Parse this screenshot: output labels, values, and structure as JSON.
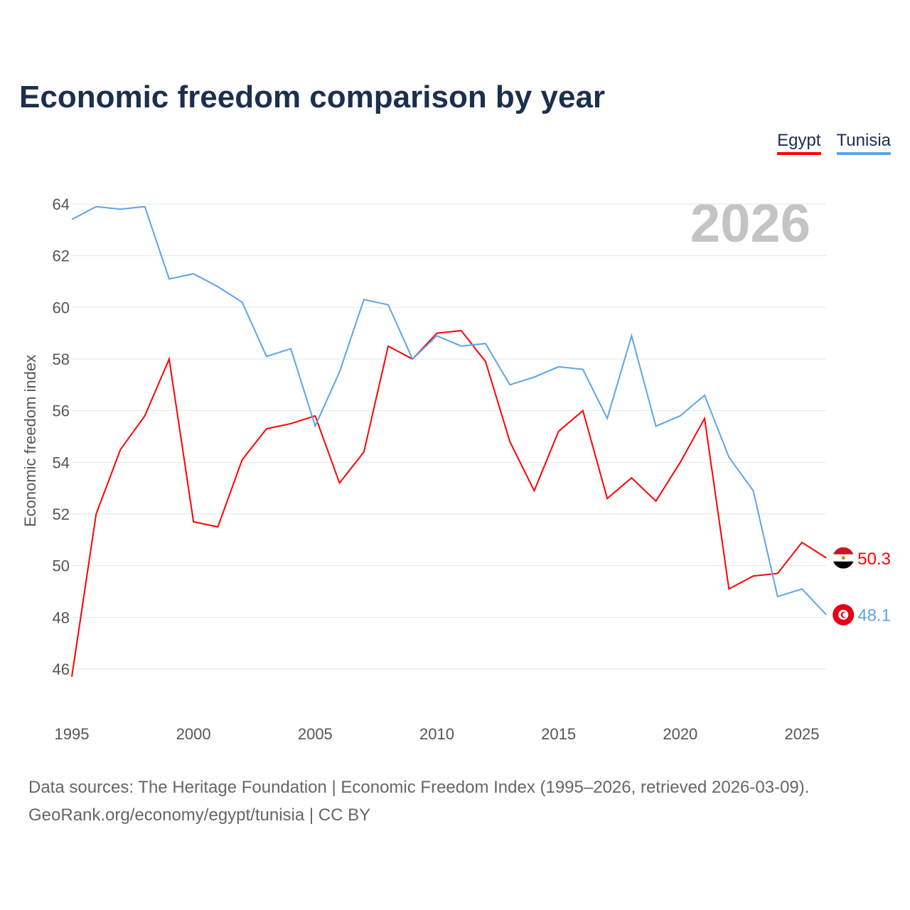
{
  "title": "Economic freedom comparison by year",
  "year_watermark": "2026",
  "source_line1": "Data sources: The Heritage Foundation | Economic Freedom Index (1995–2026, retrieved 2026-03-09).",
  "source_line2": "GeoRank.org/economy/egypt/tunisia | CC BY",
  "chart_data": {
    "type": "line",
    "title": "Economic freedom comparison by year",
    "xlabel": "",
    "ylabel": "Economic freedom index",
    "xlim": [
      1995,
      2026
    ],
    "ylim": [
      45,
      65
    ],
    "xticks": [
      1995,
      2000,
      2005,
      2010,
      2015,
      2020,
      2025
    ],
    "yticks": [
      46,
      48,
      50,
      52,
      54,
      56,
      58,
      60,
      62,
      64
    ],
    "grid": true,
    "legend": "top-right",
    "x": [
      1995,
      1996,
      1997,
      1998,
      1999,
      2000,
      2001,
      2002,
      2003,
      2004,
      2005,
      2006,
      2007,
      2008,
      2009,
      2010,
      2011,
      2012,
      2013,
      2014,
      2015,
      2016,
      2017,
      2018,
      2019,
      2020,
      2021,
      2022,
      2023,
      2024,
      2025,
      2026
    ],
    "series": [
      {
        "name": "Egypt",
        "color": "#ff0000",
        "end_label": "50.3",
        "values": [
          45.7,
          52.0,
          54.5,
          55.8,
          58.0,
          51.7,
          51.5,
          54.1,
          55.3,
          55.5,
          55.8,
          53.2,
          54.4,
          58.5,
          58.0,
          59.0,
          59.1,
          57.9,
          54.8,
          52.9,
          55.2,
          56.0,
          52.6,
          53.4,
          52.5,
          54.0,
          55.7,
          49.1,
          49.6,
          49.7,
          50.9,
          50.3
        ]
      },
      {
        "name": "Tunisia",
        "color": "#5aa5ea",
        "end_label": "48.1",
        "values": [
          63.4,
          63.9,
          63.8,
          63.9,
          61.1,
          61.3,
          60.8,
          60.2,
          58.1,
          58.4,
          55.4,
          57.5,
          60.3,
          60.1,
          58.0,
          58.9,
          58.5,
          58.6,
          57.0,
          57.3,
          57.7,
          57.6,
          55.7,
          58.9,
          55.4,
          55.8,
          56.6,
          54.2,
          52.9,
          48.8,
          49.1,
          48.1
        ]
      }
    ]
  }
}
